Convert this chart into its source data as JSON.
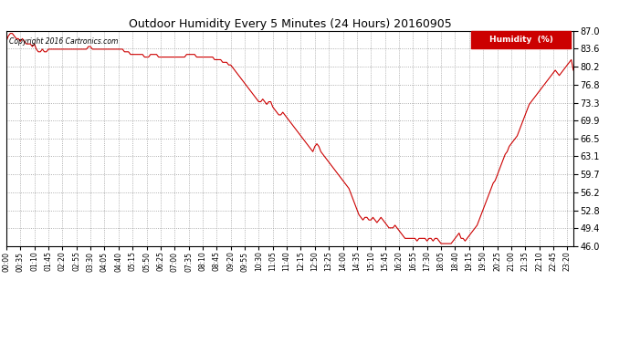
{
  "title": "Outdoor Humidity Every 5 Minutes (24 Hours) 20160905",
  "copyright": "Copyright 2016 Cartronics.com",
  "legend_label": "Humidity  (%)",
  "line_color": "#cc0000",
  "background_color": "#ffffff",
  "grid_color": "#999999",
  "ylim": [
    46.0,
    87.0
  ],
  "yticks": [
    46.0,
    49.4,
    52.8,
    56.2,
    59.7,
    63.1,
    66.5,
    69.9,
    73.3,
    76.8,
    80.2,
    83.6,
    87.0
  ],
  "tick_step": 7,
  "humidity_data": [
    85.0,
    86.0,
    86.5,
    86.5,
    86.0,
    85.5,
    85.5,
    85.0,
    85.5,
    85.0,
    84.5,
    84.5,
    84.5,
    84.0,
    84.5,
    83.5,
    83.0,
    83.0,
    83.5,
    83.0,
    83.0,
    83.5,
    83.5,
    83.5,
    83.5,
    83.5,
    83.5,
    83.5,
    83.5,
    83.5,
    83.5,
    83.5,
    83.5,
    83.5,
    83.5,
    83.5,
    83.5,
    83.5,
    83.5,
    83.5,
    83.5,
    84.0,
    84.0,
    83.5,
    83.5,
    83.5,
    83.5,
    83.5,
    83.5,
    83.5,
    83.5,
    83.5,
    83.5,
    83.5,
    83.5,
    83.5,
    83.5,
    83.5,
    83.5,
    83.0,
    83.0,
    83.0,
    82.5,
    82.5,
    82.5,
    82.5,
    82.5,
    82.5,
    82.5,
    82.0,
    82.0,
    82.0,
    82.5,
    82.5,
    82.5,
    82.5,
    82.0,
    82.0,
    82.0,
    82.0,
    82.0,
    82.0,
    82.0,
    82.0,
    82.0,
    82.0,
    82.0,
    82.0,
    82.0,
    82.0,
    82.5,
    82.5,
    82.5,
    82.5,
    82.5,
    82.0,
    82.0,
    82.0,
    82.0,
    82.0,
    82.0,
    82.0,
    82.0,
    82.0,
    81.5,
    81.5,
    81.5,
    81.5,
    81.0,
    81.0,
    81.0,
    80.5,
    80.5,
    80.0,
    79.5,
    79.0,
    78.5,
    78.0,
    77.5,
    77.0,
    76.5,
    76.0,
    75.5,
    75.0,
    74.5,
    74.0,
    73.5,
    73.5,
    74.0,
    73.5,
    73.0,
    73.5,
    73.5,
    72.5,
    72.0,
    71.5,
    71.0,
    71.0,
    71.5,
    71.0,
    70.5,
    70.0,
    69.5,
    69.0,
    68.5,
    68.0,
    67.5,
    67.0,
    66.5,
    66.0,
    65.5,
    65.0,
    64.5,
    64.0,
    65.0,
    65.5,
    65.0,
    64.0,
    63.5,
    63.0,
    62.5,
    62.0,
    61.5,
    61.0,
    60.5,
    60.0,
    59.5,
    59.0,
    58.5,
    58.0,
    57.5,
    57.0,
    56.0,
    55.0,
    54.0,
    53.0,
    52.0,
    51.5,
    51.0,
    51.5,
    51.5,
    51.0,
    51.0,
    51.5,
    51.0,
    50.5,
    51.0,
    51.5,
    51.0,
    50.5,
    50.0,
    49.5,
    49.5,
    49.5,
    50.0,
    49.5,
    49.0,
    48.5,
    48.0,
    47.5,
    47.5,
    47.5,
    47.5,
    47.5,
    47.5,
    47.0,
    47.5,
    47.5,
    47.5,
    47.5,
    47.0,
    47.5,
    47.5,
    47.0,
    47.5,
    47.5,
    47.0,
    46.5,
    46.5,
    46.5,
    46.5,
    46.5,
    46.5,
    47.0,
    47.5,
    48.0,
    48.5,
    47.5,
    47.5,
    47.0,
    47.5,
    48.0,
    48.5,
    49.0,
    49.5,
    50.0,
    51.0,
    52.0,
    53.0,
    54.0,
    55.0,
    56.0,
    57.0,
    58.0,
    58.5,
    59.5,
    60.5,
    61.5,
    62.5,
    63.5,
    64.0,
    65.0,
    65.5,
    66.0,
    66.5,
    67.0,
    68.0,
    69.0,
    70.0,
    71.0,
    72.0,
    73.0,
    73.5,
    74.0,
    74.5,
    75.0,
    75.5,
    76.0,
    76.5,
    77.0,
    77.5,
    78.0,
    78.5,
    79.0,
    79.5,
    79.0,
    78.5,
    79.0,
    79.5,
    80.0,
    80.5,
    81.0,
    81.5,
    79.5
  ]
}
